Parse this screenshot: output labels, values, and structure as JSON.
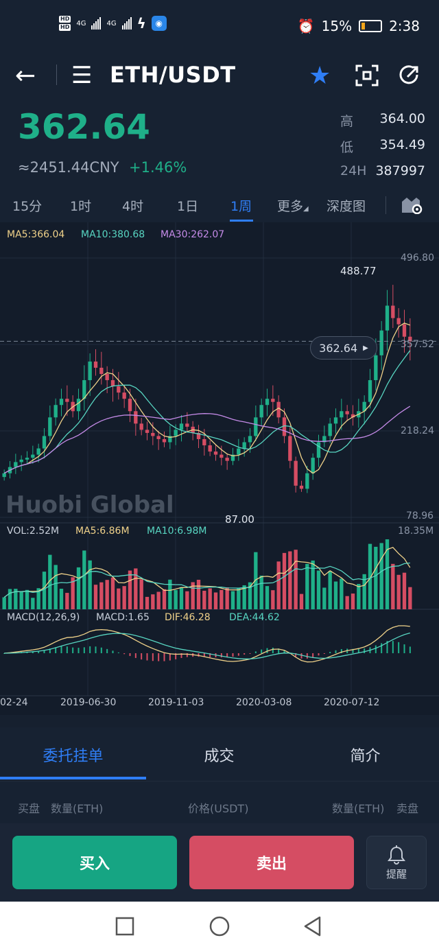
{
  "status_bar": {
    "hd1": "HD",
    "hd2": "HD",
    "net1": "4G",
    "net2": "4G",
    "battery_pct": "15%",
    "time": "2:38"
  },
  "nav": {
    "title": "ETH/USDT",
    "icons": [
      "back-arrow-icon",
      "menu-icon",
      "star-icon",
      "scan-icon",
      "share-icon"
    ]
  },
  "ticker": {
    "last": "362.64",
    "cny": "≈2451.44CNY",
    "change": "+1.46%",
    "high_label": "高",
    "high": "364.00",
    "low_label": "低",
    "low": "354.49",
    "vol_label": "24H",
    "vol": "387997"
  },
  "periods": {
    "items": [
      "15分",
      "1时",
      "4时",
      "1日",
      "1周",
      "更多",
      "深度图"
    ],
    "active": "1周"
  },
  "chart_data": {
    "type": "candlestick",
    "interval": "1 week",
    "price_axis": [
      "496.80",
      "357.52",
      "218.24",
      "78.96"
    ],
    "price_range": [
      78.96,
      496.8
    ],
    "x_ticks": [
      "02-24",
      "2019-06-30",
      "2019-11-03",
      "2020-03-08",
      "2020-07-12"
    ],
    "current": "362.64",
    "period_high": "488.77",
    "period_low": "87.00",
    "ma_legend": {
      "ma5": "MA5:366.04",
      "ma10": "MA10:380.68",
      "ma30": "MA30:262.07"
    },
    "vol_legend": {
      "vol": "VOL:2.52M",
      "ma5": "MA5:6.86M",
      "ma10": "MA10:6.98M",
      "max": "18.35M"
    },
    "macd_legend": {
      "title": "MACD(12,26,9)",
      "macd": "MACD:1.65",
      "dif": "DIF:46.28",
      "dea": "DEA:44.62"
    },
    "watermark": "Huobi Global",
    "colors": {
      "up": "#1fb089",
      "down": "#d54d63",
      "ma5": "#f0d28a",
      "ma10": "#58d6c2",
      "ma30": "#c58be8"
    },
    "closes": [
      150,
      160,
      168,
      172,
      175,
      180,
      190,
      210,
      240,
      260,
      270,
      265,
      250,
      270,
      300,
      330,
      320,
      310,
      300,
      290,
      280,
      270,
      250,
      230,
      220,
      215,
      210,
      205,
      200,
      210,
      220,
      230,
      225,
      215,
      205,
      195,
      185,
      180,
      175,
      170,
      180,
      190,
      200,
      210,
      240,
      260,
      270,
      265,
      240,
      210,
      170,
      130,
      125,
      150,
      175,
      200,
      210,
      230,
      240,
      250,
      245,
      240,
      250,
      265,
      300,
      340,
      380,
      420,
      400,
      390,
      370,
      362.64
    ]
  },
  "detail_tabs": {
    "items": [
      "委托挂单",
      "成交",
      "简介"
    ],
    "active": "委托挂单"
  },
  "orderbook": {
    "buy": "买盘",
    "qty_left": "数量(ETH)",
    "price": "价格(USDT)",
    "qty_right": "数量(ETH)",
    "sell": "卖盘"
  },
  "actions": {
    "buy": "买入",
    "sell": "卖出",
    "alert": "提醒"
  }
}
